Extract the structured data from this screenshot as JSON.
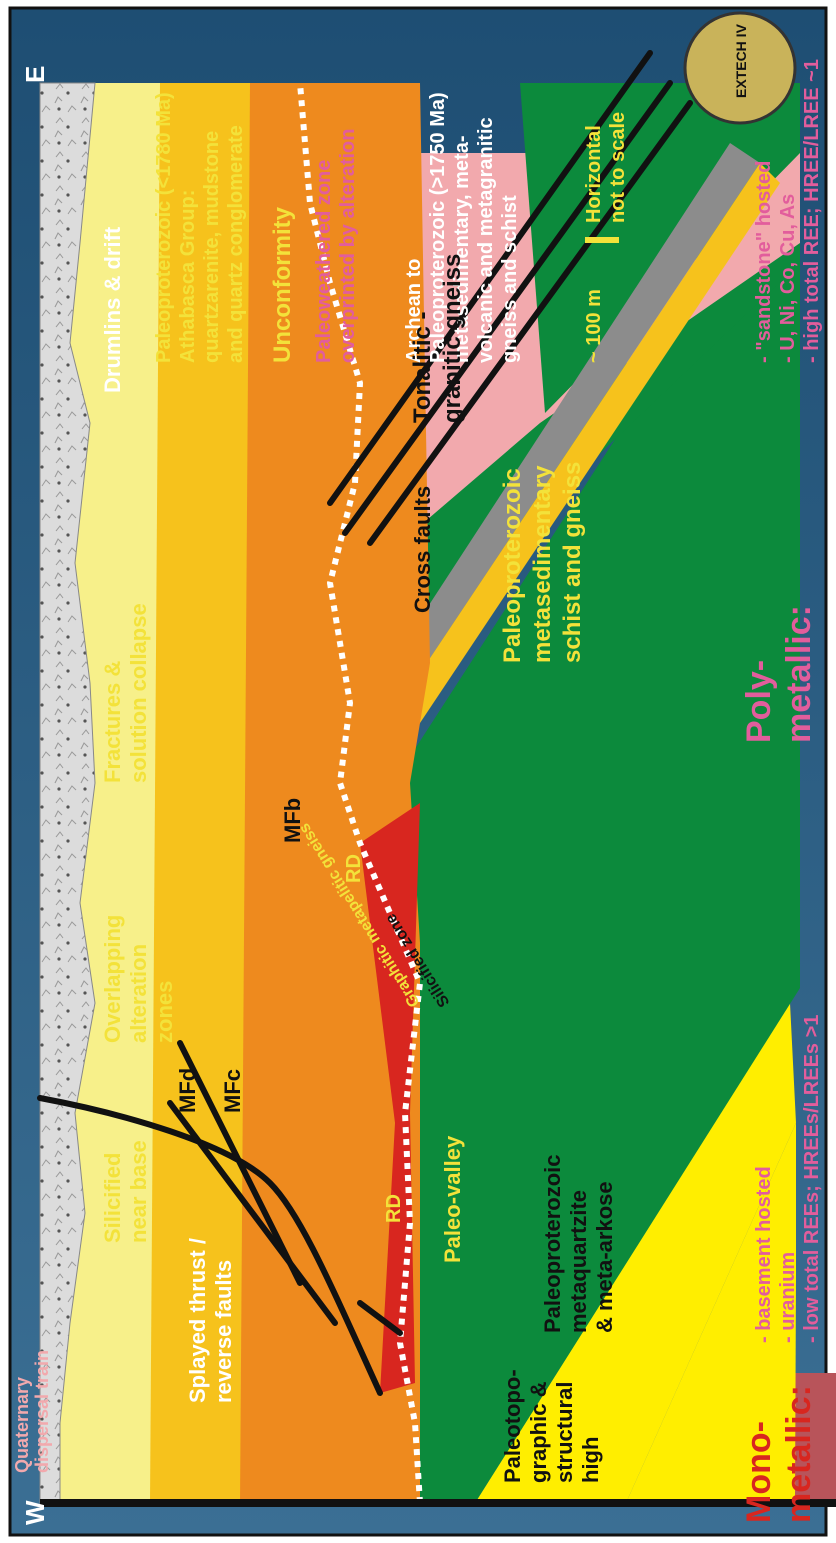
{
  "labels": {
    "west": "W",
    "east": "E",
    "quaternary": [
      "Quaternary",
      "dispersal train"
    ],
    "splayed": [
      "Splayed thrust /",
      "reverse faults"
    ],
    "silicified_near_base": [
      "Silicified",
      "near base"
    ],
    "overlapping": [
      "Overlapping",
      "alteration",
      "zones"
    ],
    "fractures": [
      "Fractures &",
      "solution collapse"
    ],
    "drumlins": "Drumlins & drift",
    "athabasca": [
      "Paleoproterozoic (<1780 Ma)",
      "Athabasca Group:",
      "quartzarenite, mudstone",
      "and quartz conglomerate"
    ],
    "unconformity": "Unconformity",
    "paleoweathered": [
      "Paleoweathered zone",
      "overprinted by alteration"
    ],
    "archean": [
      "Archean to",
      "Paleoproterozoic (>1750 Ma)",
      "metasedimentary, meta-",
      "volcanic and metagranitic",
      "gneiss and schist"
    ],
    "scale": "~ 100 m",
    "horizontal": [
      "Horizontal",
      "not to scale"
    ],
    "mfd": "MFd",
    "mfc": "MFc",
    "mfb": "MFb",
    "rd": "RD",
    "paleo_valley": "Paleo-valley",
    "paleotopo": [
      "Paleotopo-",
      "graphic &",
      "structural",
      "high"
    ],
    "metaquartzite": [
      "Paleoproterozoic",
      "metaquartzite",
      "& meta-arkose"
    ],
    "graphitic": "Graphitic  metapelitic gneiss",
    "silicified_zone": "Silicified zone",
    "cross_faults": "Cross faults",
    "metasedimentary": [
      "Paleoproterozoic",
      "metasedimentary",
      "schist and gneiss"
    ],
    "tonalitic": [
      "Tonalitic -",
      "granitic gneiss"
    ]
  },
  "legend": {
    "mono_title": [
      "Mono-",
      "metallic:"
    ],
    "mono_items": [
      "- basement hosted",
      "- uranium",
      "- low total REEs; HREEs/LREEs >1"
    ],
    "poly_title": [
      "Poly-",
      "metallic:"
    ],
    "poly_items": [
      "- \"sandstone\" hosted",
      "- U, Ni, Co, Cu, As",
      "- high total REE; HREE/LREE ~1"
    ],
    "logo_text": "EXTECH IV"
  },
  "colors": {
    "background": "#2a5f86",
    "till": "#dcdcdc",
    "mfd": "#f7f08a",
    "mfc": "#f6c21c",
    "mfb": "#ee8a1e",
    "rd": "#d8261f",
    "basement_green": "#0c8a3c",
    "tonalitic": "#f2a9ad",
    "quartzite": "#ffee00",
    "graphitic": "#8c8c8c",
    "label_yellow": "#f3e23a",
    "label_pink": "#e25d9c",
    "label_white": "#ffffff"
  }
}
